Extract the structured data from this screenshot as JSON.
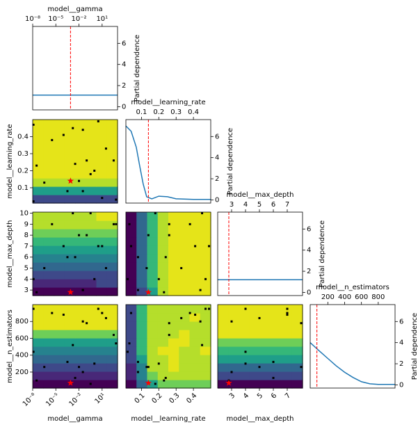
{
  "chart_data": {
    "type": "objective_matrix",
    "dims": [
      {
        "name": "model__gamma",
        "scale": "log",
        "xlim": [
          1e-08,
          1000
        ],
        "xticks": [
          {
            "value": 1e-08,
            "label": "10⁻⁸"
          },
          {
            "value": 1e-05,
            "label": "10⁻⁵"
          },
          {
            "value": 0.01,
            "label": "10⁻²"
          },
          {
            "value": 10,
            "label": "10¹"
          }
        ]
      },
      {
        "name": "model__learning_rate",
        "scale": "linear",
        "xlim": [
          0.01,
          0.5
        ],
        "xticks": [
          0.1,
          0.2,
          0.3,
          0.4
        ],
        "ylim": [
          0.01,
          0.5
        ],
        "yticks": [
          0.1,
          0.2,
          0.3,
          0.4
        ]
      },
      {
        "name": "model__max_depth",
        "scale": "linear",
        "xlim": [
          2,
          8.1
        ],
        "xticks": [
          3,
          4,
          5,
          6,
          7
        ],
        "ylim": [
          2.5,
          10.1
        ],
        "yticks": [
          3,
          4,
          5,
          6,
          7,
          8,
          9,
          10
        ]
      },
      {
        "name": "model__n_estimators",
        "scale": "linear",
        "xlim": [
          -10,
          1000
        ],
        "xticks": [
          200,
          400,
          600,
          800
        ],
        "ylim": [
          10,
          1000
        ],
        "yticks": [
          200,
          400,
          600,
          800
        ]
      }
    ],
    "partial_dependence": {
      "label": "Partial dependence",
      "ylim": [
        -0.3,
        7.6
      ],
      "yticks": [
        0,
        2,
        4,
        6
      ],
      "color": "#1f77b4",
      "curves": [
        {
          "x": [
            1e-08,
            1e-06,
            0.0001,
            0.01,
            1,
            100,
            1000
          ],
          "values": [
            1.1,
            1.1,
            1.1,
            1.1,
            1.1,
            1.1,
            1.1
          ]
        },
        {
          "x": [
            0.01,
            0.04,
            0.07,
            0.09,
            0.11,
            0.13,
            0.16,
            0.2,
            0.25,
            0.3,
            0.4,
            0.5
          ],
          "values": [
            7,
            6.5,
            5,
            3.2,
            1.5,
            0.3,
            0.1,
            0.35,
            0.3,
            0.1,
            0.05,
            0.05
          ]
        },
        {
          "x": [
            2,
            3,
            4,
            5,
            6,
            7,
            8.1
          ],
          "values": [
            1.2,
            1.2,
            1.2,
            1.2,
            1.2,
            1.2,
            1.2
          ]
        },
        {
          "x": [
            -10,
            100,
            200,
            300,
            400,
            500,
            600,
            700,
            800,
            1000
          ],
          "values": [
            4,
            3.2,
            2.5,
            1.8,
            1.2,
            0.7,
            0.3,
            0.1,
            0.05,
            0.05
          ]
        }
      ]
    },
    "best_color": "#ff0000",
    "best": [
      0.0008,
      0.14,
      2.8,
      70
    ],
    "samples": [
      [
        1.26e-08,
        0.47,
        4,
        950
      ],
      [
        3.2e-06,
        0.38,
        9,
        900
      ],
      [
        0.0001,
        0.41,
        7,
        880
      ],
      [
        0.0016,
        0.45,
        10,
        520
      ],
      [
        0.032,
        0.44,
        3,
        800
      ],
      [
        3.2,
        0.49,
        7,
        950
      ],
      [
        32,
        0.33,
        5,
        840
      ],
      [
        3.2e-08,
        0.23,
        2.8,
        100
      ],
      [
        0.0032,
        0.24,
        6,
        130
      ],
      [
        0.1,
        0.26,
        8,
        780
      ],
      [
        1,
        0.2,
        4,
        300
      ],
      [
        316,
        0.26,
        9,
        640
      ],
      [
        3.2e-07,
        0.13,
        5,
        260
      ],
      [
        0.00032,
        0.08,
        6,
        320
      ],
      [
        0.032,
        0.08,
        3,
        200
      ],
      [
        0.32,
        0.18,
        10,
        60
      ],
      [
        10,
        0.04,
        7,
        900
      ],
      [
        1.26e-08,
        0.02,
        4,
        440
      ],
      [
        0.01,
        0.14,
        8,
        260
      ],
      [
        630,
        0.03,
        9,
        540
      ]
    ],
    "colors": [
      "#440154",
      "#482878",
      "#3e4989",
      "#31688e",
      "#26828e",
      "#1f9e89",
      "#35b779",
      "#6ece58",
      "#b5de2b",
      "#e5e419"
    ],
    "contours": [
      {
        "x_dim": 0,
        "y_dim": 1,
        "z": [
          [
            2,
            2,
            2,
            2,
            2,
            2,
            2,
            2
          ],
          [
            5,
            5,
            5,
            5,
            5,
            5,
            5,
            5
          ],
          [
            8,
            8,
            8,
            8,
            8,
            8,
            8,
            8
          ],
          [
            9,
            9,
            9,
            9,
            9,
            9,
            9,
            9
          ],
          [
            9,
            9,
            9,
            9,
            9,
            9,
            9,
            9
          ],
          [
            9,
            9,
            9,
            9,
            9,
            9,
            9,
            9
          ],
          [
            9,
            9,
            9,
            9,
            9,
            9,
            9,
            9
          ],
          [
            9,
            9,
            9,
            9,
            9,
            9,
            9,
            9
          ],
          [
            9,
            9,
            9,
            9,
            9,
            9,
            9,
            9
          ],
          [
            9,
            9,
            9,
            9,
            9,
            9,
            9,
            9
          ]
        ]
      },
      {
        "x_dim": 0,
        "y_dim": 2,
        "z": [
          [
            0,
            0,
            0,
            0,
            0,
            0,
            0,
            0
          ],
          [
            1,
            1,
            1,
            1,
            1,
            1,
            2,
            2
          ],
          [
            2,
            2,
            2,
            2,
            2,
            2,
            2,
            2
          ],
          [
            3,
            3,
            3,
            3,
            3,
            3,
            3,
            3
          ],
          [
            4,
            4,
            4,
            4,
            4,
            4,
            4,
            4
          ],
          [
            5,
            5,
            5,
            5,
            5,
            5,
            5,
            5
          ],
          [
            6,
            6,
            6,
            6,
            6,
            6,
            6,
            6
          ],
          [
            7,
            7,
            7,
            7,
            7,
            7,
            7,
            7
          ],
          [
            8,
            8,
            8,
            8,
            8,
            8,
            8,
            8
          ],
          [
            8,
            8,
            8,
            8,
            8,
            8,
            9,
            9
          ]
        ]
      },
      {
        "x_dim": 1,
        "y_dim": 2,
        "z": [
          [
            0,
            2,
            5,
            8,
            9,
            9,
            9,
            9
          ],
          [
            0,
            3,
            6,
            8,
            9,
            9,
            9,
            9
          ],
          [
            0,
            3,
            6,
            8,
            9,
            9,
            9,
            9
          ],
          [
            0,
            3,
            6,
            8,
            9,
            9,
            9,
            9
          ],
          [
            0,
            3,
            6,
            8,
            9,
            9,
            9,
            9
          ],
          [
            0,
            3,
            6,
            8,
            9,
            9,
            9,
            9
          ],
          [
            0,
            3,
            6,
            8,
            9,
            9,
            9,
            9
          ],
          [
            0,
            3,
            6,
            8,
            9,
            9,
            9,
            9
          ],
          [
            0,
            3,
            6,
            8,
            9,
            9,
            9,
            9
          ],
          [
            0,
            3,
            6,
            8,
            9,
            9,
            9,
            9
          ]
        ]
      },
      {
        "x_dim": 0,
        "y_dim": 3,
        "z": [
          [
            0,
            0,
            0,
            0,
            0,
            0,
            0,
            0
          ],
          [
            1,
            1,
            1,
            1,
            1,
            1,
            1,
            1
          ],
          [
            2,
            2,
            2,
            2,
            2,
            2,
            2,
            2
          ],
          [
            3,
            3,
            3,
            3,
            3,
            3,
            3,
            3
          ],
          [
            4,
            4,
            4,
            4,
            4,
            4,
            4,
            4
          ],
          [
            5,
            5,
            5,
            5,
            5,
            5,
            5,
            5
          ],
          [
            7,
            7,
            7,
            7,
            7,
            7,
            7,
            7
          ],
          [
            9,
            9,
            9,
            9,
            9,
            9,
            9,
            9
          ],
          [
            9,
            9,
            9,
            9,
            9,
            9,
            9,
            9
          ],
          [
            9,
            9,
            9,
            9,
            9,
            9,
            9,
            9
          ]
        ]
      },
      {
        "x_dim": 1,
        "y_dim": 3,
        "z": [
          [
            0,
            3,
            5,
            7,
            7,
            7,
            7,
            7
          ],
          [
            1,
            4,
            7,
            8,
            8,
            8,
            8,
            8
          ],
          [
            1,
            4,
            8,
            8,
            9,
            8,
            8,
            8
          ],
          [
            2,
            5,
            8,
            8,
            9,
            8,
            8,
            8
          ],
          [
            2,
            6,
            8,
            9,
            9,
            8,
            8,
            9
          ],
          [
            2,
            6,
            8,
            8,
            9,
            9,
            8,
            8
          ],
          [
            2,
            6,
            8,
            8,
            8,
            9,
            8,
            8
          ],
          [
            2,
            6,
            8,
            8,
            8,
            8,
            8,
            8
          ],
          [
            2,
            6,
            8,
            8,
            8,
            8,
            9,
            8
          ],
          [
            2,
            6,
            8,
            8,
            8,
            8,
            8,
            8
          ]
        ]
      },
      {
        "x_dim": 2,
        "y_dim": 3,
        "z": [
          [
            0,
            0,
            0,
            0,
            0,
            0,
            0,
            0
          ],
          [
            2,
            2,
            2,
            2,
            2,
            2,
            2,
            2
          ],
          [
            3,
            3,
            3,
            3,
            3,
            3,
            3,
            3
          ],
          [
            5,
            5,
            5,
            5,
            5,
            5,
            5,
            5
          ],
          [
            6,
            6,
            6,
            6,
            6,
            6,
            6,
            6
          ],
          [
            7,
            7,
            7,
            7,
            7,
            7,
            7,
            7
          ],
          [
            9,
            9,
            9,
            9,
            9,
            9,
            9,
            9
          ],
          [
            9,
            9,
            9,
            9,
            9,
            9,
            9,
            9
          ],
          [
            9,
            9,
            9,
            9,
            9,
            9,
            9,
            9
          ],
          [
            9,
            9,
            9,
            9,
            9,
            9,
            9,
            9
          ]
        ]
      }
    ]
  }
}
